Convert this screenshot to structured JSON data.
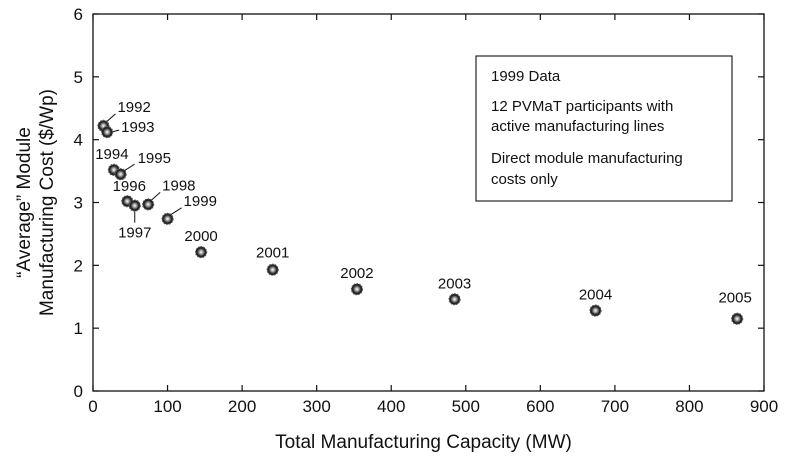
{
  "chart_data": {
    "type": "scatter",
    "xlabel": "Total Manufacturing Capacity (MW)",
    "ylabel": [
      "“Average” Module",
      "Manufacturing Cost ($/Wp)"
    ],
    "xlim": [
      0,
      900
    ],
    "ylim": [
      0,
      6
    ],
    "xticks": [
      0,
      100,
      200,
      300,
      400,
      500,
      600,
      700,
      800,
      900
    ],
    "yticks": [
      0,
      1,
      2,
      3,
      4,
      5,
      6
    ],
    "grid": false,
    "points": [
      {
        "label": "1992",
        "x": 14,
        "y": 4.22
      },
      {
        "label": "1993",
        "x": 19,
        "y": 4.12
      },
      {
        "label": "1994",
        "x": 28,
        "y": 3.52
      },
      {
        "label": "1995",
        "x": 37,
        "y": 3.45
      },
      {
        "label": "1996",
        "x": 46,
        "y": 3.02
      },
      {
        "label": "1997",
        "x": 56,
        "y": 2.95
      },
      {
        "label": "1998",
        "x": 74,
        "y": 2.97
      },
      {
        "label": "1999",
        "x": 100,
        "y": 2.74
      },
      {
        "label": "2000",
        "x": 145,
        "y": 2.21
      },
      {
        "label": "2001",
        "x": 241,
        "y": 1.93
      },
      {
        "label": "2002",
        "x": 354,
        "y": 1.62
      },
      {
        "label": "2003",
        "x": 485,
        "y": 1.46
      },
      {
        "label": "2004",
        "x": 674,
        "y": 1.28
      },
      {
        "label": "2005",
        "x": 864,
        "y": 1.15
      }
    ],
    "legend_position": "top-right",
    "legend_lines": [
      "1999 Data",
      "12 PVMaT participants with",
      "active manufacturing lines",
      "Direct module manufacturing",
      "costs only"
    ]
  }
}
